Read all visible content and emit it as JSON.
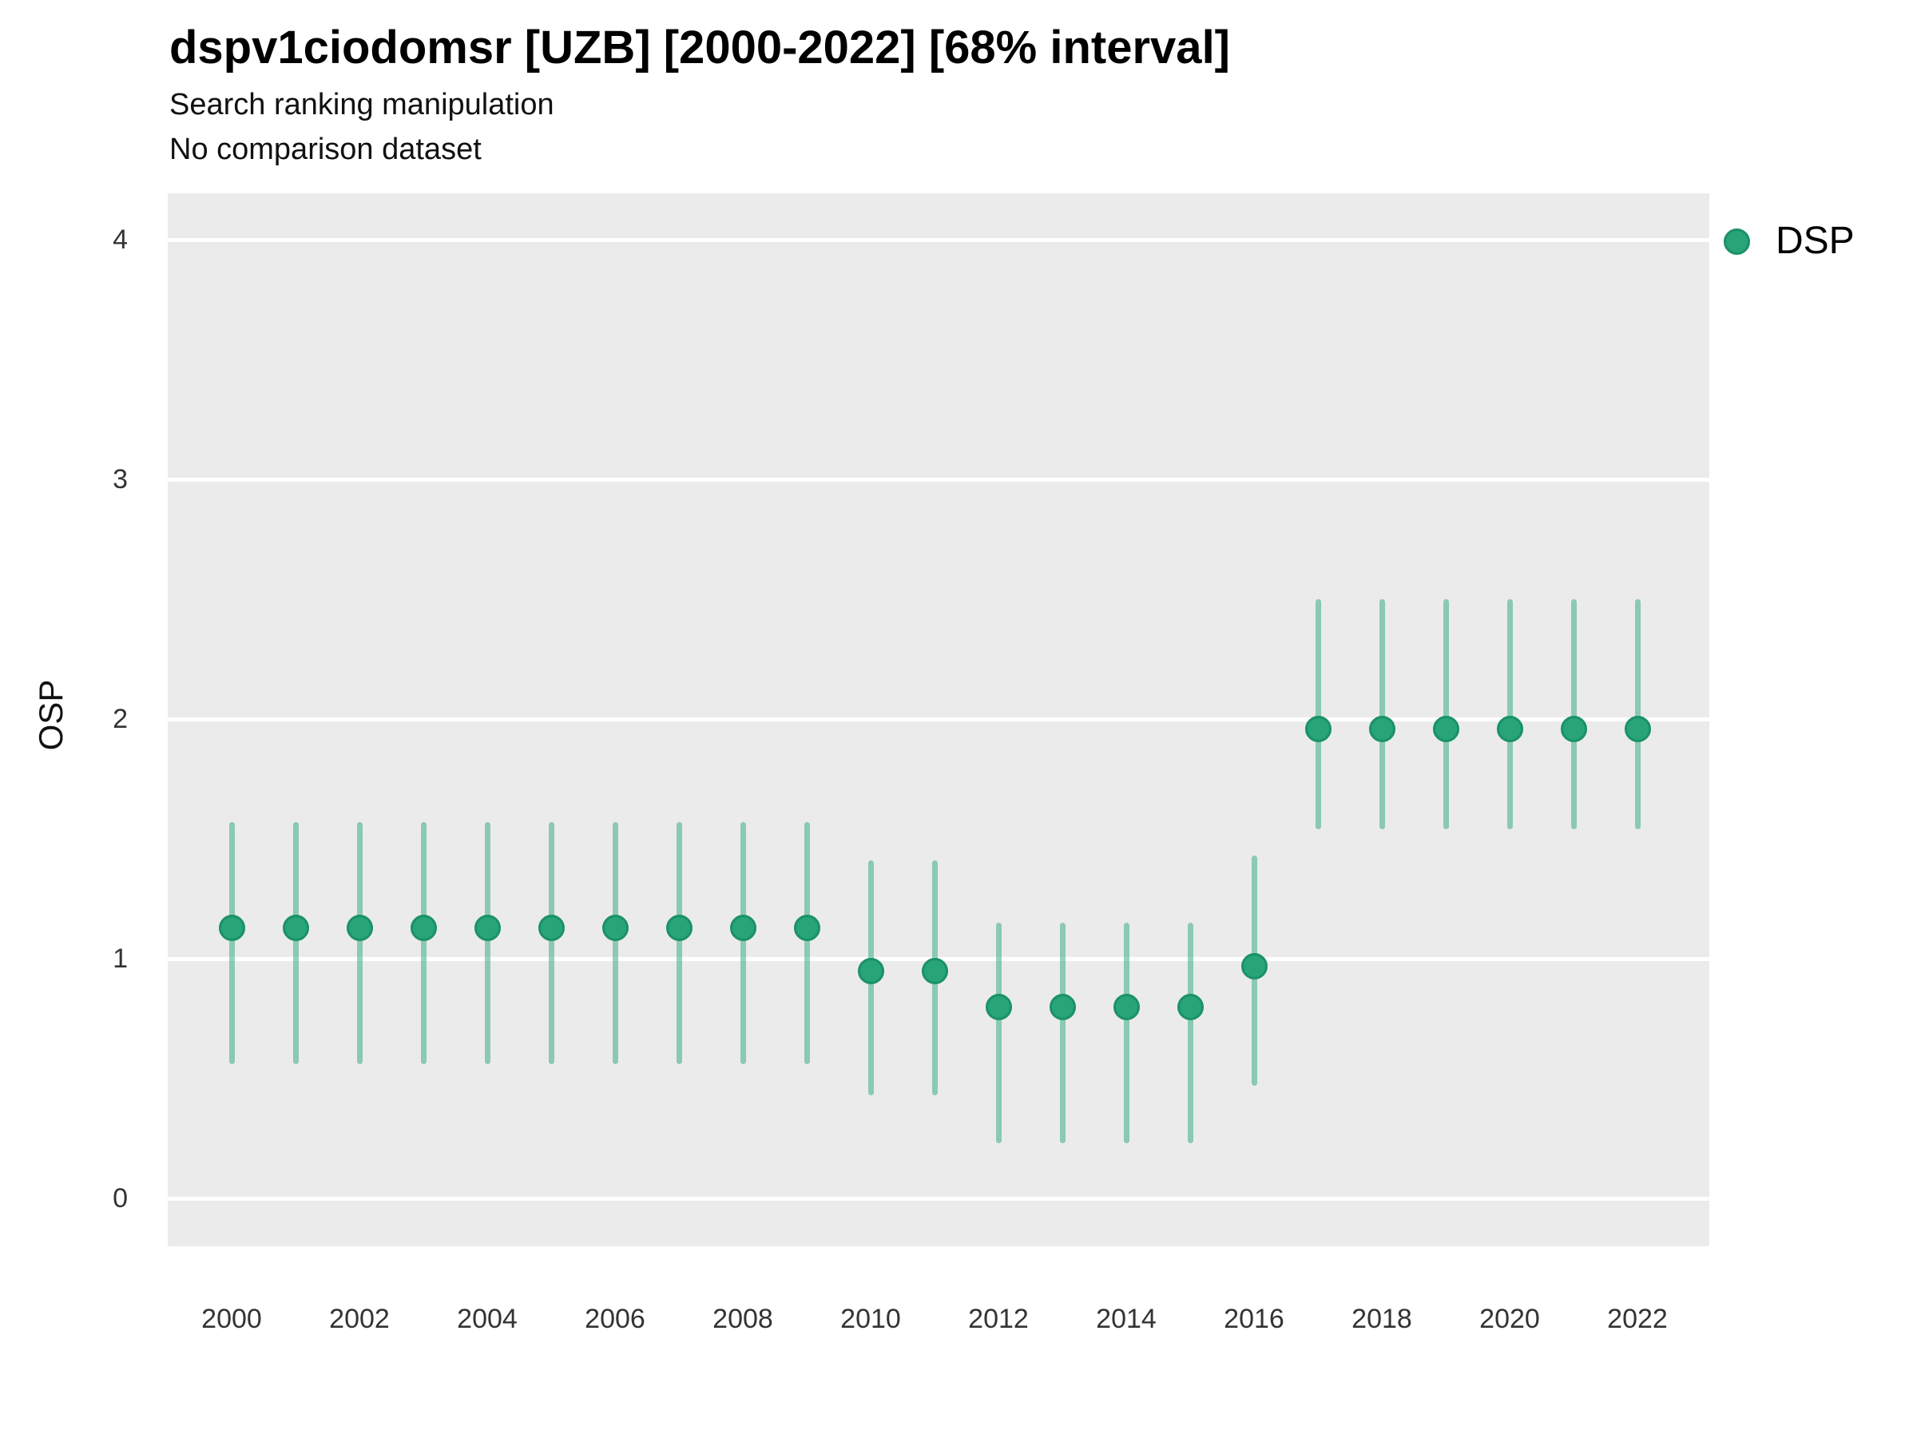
{
  "chart_data": {
    "type": "scatter",
    "variant": "pointrange",
    "title": "dspv1ciodomsr [UZB] [2000-2022] [68% interval]",
    "subtitle": "Search ranking manipulation",
    "note": "No comparison dataset",
    "ylabel": "OSP",
    "xlabel": "",
    "ylim": [
      -0.25,
      4.2
    ],
    "xlim": [
      1999.0,
      2023.1
    ],
    "y_ticks": [
      0,
      1,
      2,
      3,
      4
    ],
    "x_ticks": [
      2000,
      2002,
      2004,
      2006,
      2008,
      2010,
      2012,
      2014,
      2016,
      2018,
      2020,
      2022
    ],
    "grid": "horizontal-major-only",
    "legend_position": "top-right",
    "colors": {
      "point": "#27a578",
      "point_ring": "#1b9166",
      "range": "rgba(42,167,122,0.5)",
      "panel_background": "#ebebeb",
      "gridline": "#ffffff",
      "tick_text": "#333333"
    },
    "legend": [
      {
        "label": "DSP",
        "color": "#27a578"
      }
    ],
    "series": [
      {
        "name": "DSP",
        "points": [
          {
            "year": 2000,
            "value": 1.13,
            "lo": 0.56,
            "hi": 1.57
          },
          {
            "year": 2001,
            "value": 1.13,
            "lo": 0.56,
            "hi": 1.57
          },
          {
            "year": 2002,
            "value": 1.13,
            "lo": 0.56,
            "hi": 1.57
          },
          {
            "year": 2003,
            "value": 1.13,
            "lo": 0.56,
            "hi": 1.57
          },
          {
            "year": 2004,
            "value": 1.13,
            "lo": 0.56,
            "hi": 1.57
          },
          {
            "year": 2005,
            "value": 1.13,
            "lo": 0.56,
            "hi": 1.57
          },
          {
            "year": 2006,
            "value": 1.13,
            "lo": 0.56,
            "hi": 1.57
          },
          {
            "year": 2007,
            "value": 1.13,
            "lo": 0.56,
            "hi": 1.57
          },
          {
            "year": 2008,
            "value": 1.13,
            "lo": 0.56,
            "hi": 1.57
          },
          {
            "year": 2009,
            "value": 1.13,
            "lo": 0.56,
            "hi": 1.57
          },
          {
            "year": 2010,
            "value": 0.95,
            "lo": 0.43,
            "hi": 1.41
          },
          {
            "year": 2011,
            "value": 0.95,
            "lo": 0.43,
            "hi": 1.41
          },
          {
            "year": 2012,
            "value": 0.8,
            "lo": 0.23,
            "hi": 1.15
          },
          {
            "year": 2013,
            "value": 0.8,
            "lo": 0.23,
            "hi": 1.15
          },
          {
            "year": 2014,
            "value": 0.8,
            "lo": 0.23,
            "hi": 1.15
          },
          {
            "year": 2015,
            "value": 0.8,
            "lo": 0.23,
            "hi": 1.15
          },
          {
            "year": 2016,
            "value": 0.97,
            "lo": 0.47,
            "hi": 1.43
          },
          {
            "year": 2017,
            "value": 1.96,
            "lo": 1.54,
            "hi": 2.5
          },
          {
            "year": 2018,
            "value": 1.96,
            "lo": 1.54,
            "hi": 2.5
          },
          {
            "year": 2019,
            "value": 1.96,
            "lo": 1.54,
            "hi": 2.5
          },
          {
            "year": 2020,
            "value": 1.96,
            "lo": 1.54,
            "hi": 2.5
          },
          {
            "year": 2021,
            "value": 1.96,
            "lo": 1.54,
            "hi": 2.5
          },
          {
            "year": 2022,
            "value": 1.96,
            "lo": 1.54,
            "hi": 2.5
          }
        ]
      }
    ]
  }
}
